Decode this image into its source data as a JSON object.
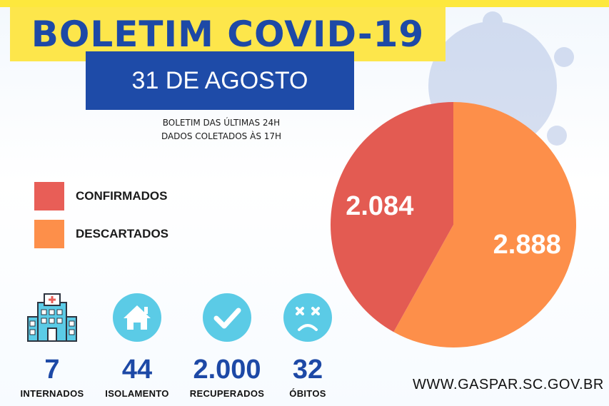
{
  "header": {
    "title": "BOLETIM COVID-19",
    "date": "31 DE AGOSTO"
  },
  "subtitle": {
    "line1": "BOLETIM DAS ÚLTIMAS 24H",
    "line2": "DADOS COLETADOS ÀS  17H"
  },
  "legend": [
    {
      "label": "CONFIRMADOS",
      "color": "#e85e57"
    },
    {
      "label": "DESCARTADOS",
      "color": "#fd8f4a"
    }
  ],
  "chart_data": {
    "type": "pie",
    "categories": [
      "CONFIRMADOS",
      "DESCARTADOS"
    ],
    "values": [
      2084,
      2888
    ],
    "labels": [
      "2.084",
      "2.888"
    ],
    "colors": [
      "#e35b52",
      "#fd8f4a"
    ]
  },
  "stats": [
    {
      "value": "7",
      "label": "INTERNADOS",
      "icon": "hospital-icon"
    },
    {
      "value": "44",
      "label": "ISOLAMENTO",
      "icon": "house-icon"
    },
    {
      "value": "2.000",
      "label": "RECUPERADOS",
      "icon": "checkmark-icon"
    },
    {
      "value": "32",
      "label": "ÓBITOS",
      "icon": "sad-face-icon"
    }
  ],
  "website": "WWW.GASPAR.SC.GOV.BR",
  "colors": {
    "accent_blue": "#1d49a6",
    "title_yellow": "#fde64b",
    "icon_cyan": "#5bcbe6"
  }
}
